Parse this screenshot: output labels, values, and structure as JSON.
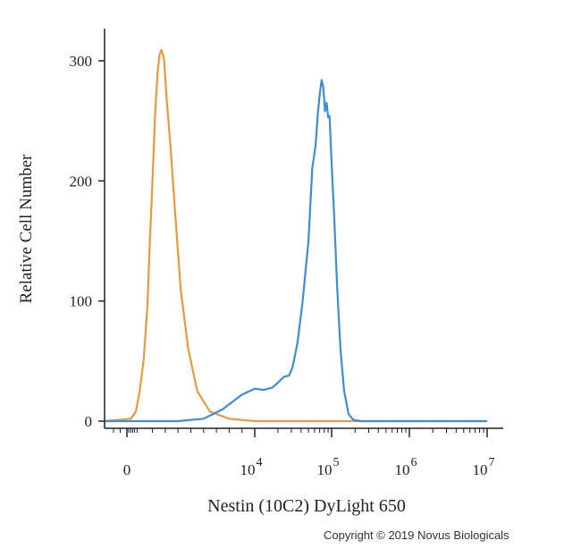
{
  "chart_data": {
    "type": "line",
    "title": "",
    "xlabel": "Nestin (10C2) DyLight 650",
    "ylabel": "Relative Cell Number",
    "x_scale": "biexponential",
    "xlim": [
      -500,
      10000000
    ],
    "ylim": [
      0,
      330
    ],
    "grid": false,
    "legend": "none",
    "y_ticks": [
      {
        "value": 0,
        "label": "0"
      },
      {
        "value": 100,
        "label": "100"
      },
      {
        "value": 200,
        "label": "200"
      },
      {
        "value": 300,
        "label": "300"
      }
    ],
    "x_ticks": [
      {
        "value": 0,
        "label": "0",
        "exp": ""
      },
      {
        "value": 10000,
        "label": "10",
        "exp": "4"
      },
      {
        "value": 100000,
        "label": "10",
        "exp": "5"
      },
      {
        "value": 1000000,
        "label": "10",
        "exp": "6"
      },
      {
        "value": 10000000,
        "label": "10",
        "exp": "7"
      }
    ],
    "series": [
      {
        "color": "#e89a3c",
        "points": [
          [
            -500,
            0
          ],
          [
            300,
            2
          ],
          [
            700,
            8
          ],
          [
            1000,
            25
          ],
          [
            1300,
            50
          ],
          [
            1600,
            95
          ],
          [
            1800,
            150
          ],
          [
            2000,
            200
          ],
          [
            2200,
            255
          ],
          [
            2400,
            290
          ],
          [
            2550,
            305
          ],
          [
            2700,
            309
          ],
          [
            2900,
            302
          ],
          [
            3100,
            270
          ],
          [
            3400,
            230
          ],
          [
            3800,
            170
          ],
          [
            4200,
            110
          ],
          [
            4800,
            60
          ],
          [
            5500,
            25
          ],
          [
            6500,
            8
          ],
          [
            8000,
            2
          ],
          [
            10000,
            0
          ],
          [
            10000000,
            0
          ]
        ]
      },
      {
        "color": "#3b8fd6",
        "points": [
          [
            -500,
            0
          ],
          [
            4000,
            0
          ],
          [
            6000,
            2
          ],
          [
            7500,
            10
          ],
          [
            9000,
            22
          ],
          [
            10000,
            27
          ],
          [
            13000,
            26
          ],
          [
            17000,
            28
          ],
          [
            20000,
            32
          ],
          [
            24000,
            37
          ],
          [
            28000,
            38
          ],
          [
            31000,
            45
          ],
          [
            36000,
            65
          ],
          [
            42000,
            100
          ],
          [
            50000,
            150
          ],
          [
            56000,
            210
          ],
          [
            62000,
            230
          ],
          [
            66000,
            255
          ],
          [
            70000,
            272
          ],
          [
            74000,
            284
          ],
          [
            78000,
            278
          ],
          [
            82000,
            258
          ],
          [
            86000,
            265
          ],
          [
            90000,
            253
          ],
          [
            94000,
            254
          ],
          [
            100000,
            215
          ],
          [
            108000,
            170
          ],
          [
            118000,
            110
          ],
          [
            130000,
            60
          ],
          [
            145000,
            25
          ],
          [
            165000,
            6
          ],
          [
            190000,
            1
          ],
          [
            240000,
            0
          ],
          [
            10000000,
            0
          ]
        ]
      }
    ]
  },
  "copyright": "Copyright © 2019 Novus Biologicals"
}
